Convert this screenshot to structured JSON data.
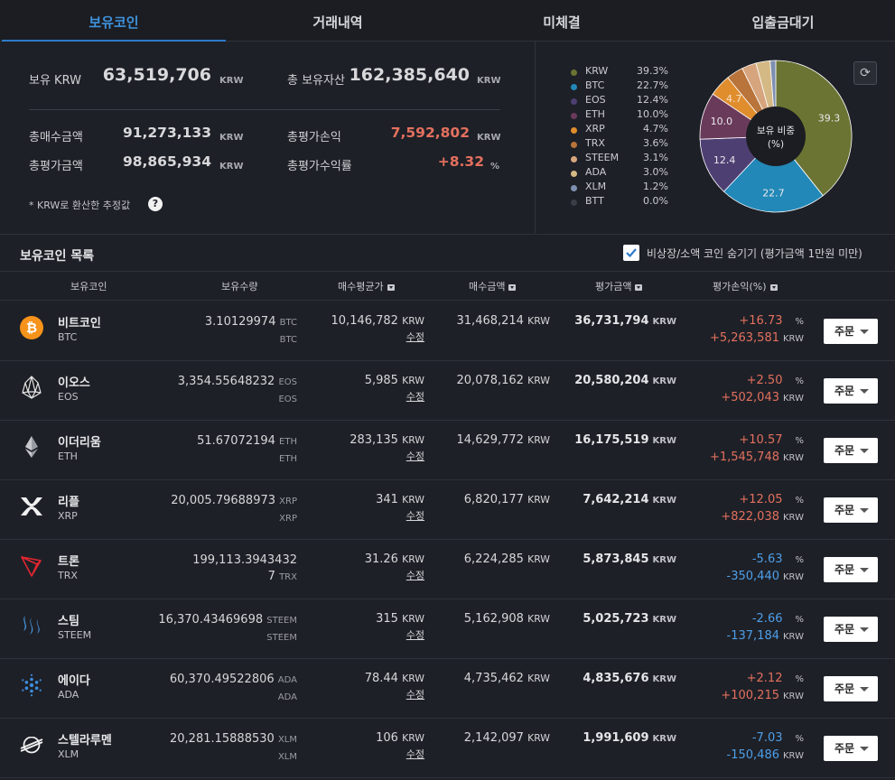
{
  "tabs": [
    {
      "label": "보유코인",
      "active": true
    },
    {
      "label": "거래내역",
      "active": false
    },
    {
      "label": "미체결",
      "active": false
    },
    {
      "label": "입출금대기",
      "active": false
    }
  ],
  "summary": {
    "krw_label": "보유 KRW",
    "krw_value": "63,519,706",
    "krw_unit": "KRW",
    "total_assets_label": "총 보유자산",
    "total_assets_value": "162,385,640",
    "total_assets_unit": "KRW",
    "total_buy_label": "총매수금액",
    "total_buy_value": "91,273,133",
    "total_buy_unit": "KRW",
    "total_eval_label": "총평가금액",
    "total_eval_value": "98,865,934",
    "total_eval_unit": "KRW",
    "total_pl_label": "총평가손익",
    "total_pl_value": "7,592,802",
    "total_pl_unit": "KRW",
    "total_rate_label": "총평가수익률",
    "total_rate_value": "+8.32",
    "total_rate_unit": "%",
    "note": "* KRW로 환산한 추정값",
    "help": "?"
  },
  "pie": {
    "center_label_1": "보유 비중",
    "center_label_2": "(%)",
    "refresh_icon": "refresh-icon"
  },
  "chart_data": {
    "type": "pie",
    "categories": [
      "KRW",
      "BTC",
      "EOS",
      "ETH",
      "XRP",
      "TRX",
      "STEEM",
      "ADA",
      "XLM",
      "BTT"
    ],
    "values": [
      39.3,
      22.7,
      12.4,
      10.0,
      4.7,
      3.6,
      3.1,
      3.0,
      1.2,
      0.0
    ],
    "labels_pct": [
      "39.3%",
      "22.7%",
      "12.4%",
      "10.0%",
      "4.7%",
      "3.6%",
      "3.1%",
      "3.0%",
      "1.2%",
      "0.0%"
    ],
    "slice_labels": [
      "39.3",
      "22.7",
      "12.4",
      "10.0",
      "4.7",
      "",
      "",
      "",
      "",
      ""
    ],
    "colors": [
      "#6b7433",
      "#2288b8",
      "#4e3f73",
      "#6a3a5b",
      "#e08d2e",
      "#b8743a",
      "#d6a57e",
      "#d5b985",
      "#7e8fb0",
      "#3a3d45"
    ],
    "legend_placement": "left"
  },
  "list": {
    "title": "보유코인 목록",
    "hide_checkbox_label": "비상장/소액 코인 숨기기 (평가금액 1만원 미만)",
    "hide_checked": true,
    "columns": [
      "보유코인",
      "보유수량",
      "매수평균가",
      "매수금액",
      "평가금액",
      "평가손익(%)"
    ]
  },
  "rows": [
    {
      "name": "비트코인",
      "symbol": "BTC",
      "icon": "bitcoin-icon",
      "qty": "3.10129974",
      "qty_unit": "BTC",
      "avg": "10,146,782",
      "buy": "31,468,214",
      "eval": "36,731,794",
      "pct": "+16.73",
      "pl": "+5,263,581",
      "dir": "up"
    },
    {
      "name": "이오스",
      "symbol": "EOS",
      "icon": "eos-icon",
      "qty": "3,354.55648232",
      "qty_unit": "EOS",
      "avg": "5,985",
      "buy": "20,078,162",
      "eval": "20,580,204",
      "pct": "+2.50",
      "pl": "+502,043",
      "dir": "up"
    },
    {
      "name": "이더리움",
      "symbol": "ETH",
      "icon": "ethereum-icon",
      "qty": "51.67072194",
      "qty_unit": "ETH",
      "avg": "283,135",
      "buy": "14,629,772",
      "eval": "16,175,519",
      "pct": "+10.57",
      "pl": "+1,545,748",
      "dir": "up"
    },
    {
      "name": "리플",
      "symbol": "XRP",
      "icon": "ripple-icon",
      "qty": "20,005.79688973",
      "qty_unit": "XRP",
      "avg": "341",
      "buy": "6,820,177",
      "eval": "7,642,214",
      "pct": "+12.05",
      "pl": "+822,038",
      "dir": "up"
    },
    {
      "name": "트론",
      "symbol": "TRX",
      "icon": "tron-icon",
      "qty": "199,113.3943432",
      "qty_tail": "7",
      "qty_unit": "TRX",
      "avg": "31.26",
      "buy": "6,224,285",
      "eval": "5,873,845",
      "pct": "-5.63",
      "pl": "-350,440",
      "dir": "down"
    },
    {
      "name": "스팀",
      "symbol": "STEEM",
      "icon": "steem-icon",
      "qty": "16,370.43469698",
      "qty_unit": "STEEM",
      "avg": "315",
      "buy": "5,162,908",
      "eval": "5,025,723",
      "pct": "-2.66",
      "pl": "-137,184",
      "dir": "down"
    },
    {
      "name": "에이다",
      "symbol": "ADA",
      "icon": "cardano-icon",
      "qty": "60,370.49522806",
      "qty_unit": "ADA",
      "avg": "78.44",
      "buy": "4,735,462",
      "eval": "4,835,676",
      "pct": "+2.12",
      "pl": "+100,215",
      "dir": "up"
    },
    {
      "name": "스텔라루멘",
      "symbol": "XLM",
      "icon": "stellar-icon",
      "qty": "20,281.15888530",
      "qty_unit": "XLM",
      "avg": "106",
      "buy": "2,142,097",
      "eval": "1,991,609",
      "pct": "-7.03",
      "pl": "-150,486",
      "dir": "down"
    }
  ],
  "row_common": {
    "krw": "KRW",
    "edit": "수정",
    "order": "주문",
    "pct_unit": "%"
  }
}
